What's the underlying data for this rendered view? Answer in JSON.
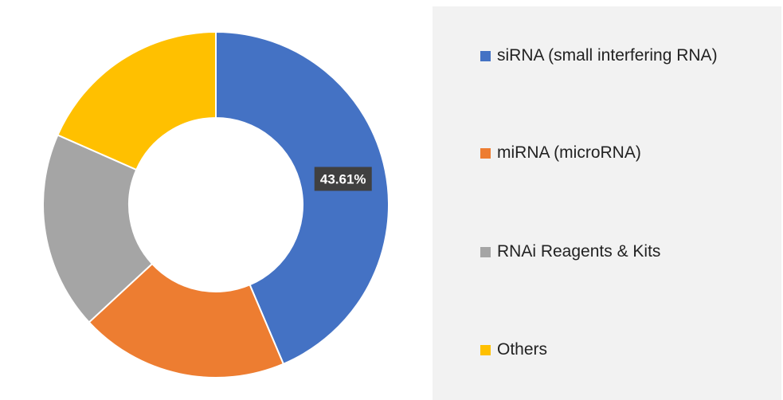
{
  "chart_data": {
    "type": "pie",
    "donut": true,
    "categories": [
      "siRNA (small interfering RNA)",
      "miRNA (microRNA)",
      "RNAi Reagents & Kits",
      "Others"
    ],
    "values": [
      43.61,
      19.5,
      18.5,
      18.39
    ],
    "colors": [
      "#4472c4",
      "#ed7d31",
      "#a5a5a5",
      "#ffc000"
    ],
    "data_labels": [
      "43.61%",
      "",
      "",
      ""
    ],
    "title": "",
    "legend_position": "right"
  }
}
